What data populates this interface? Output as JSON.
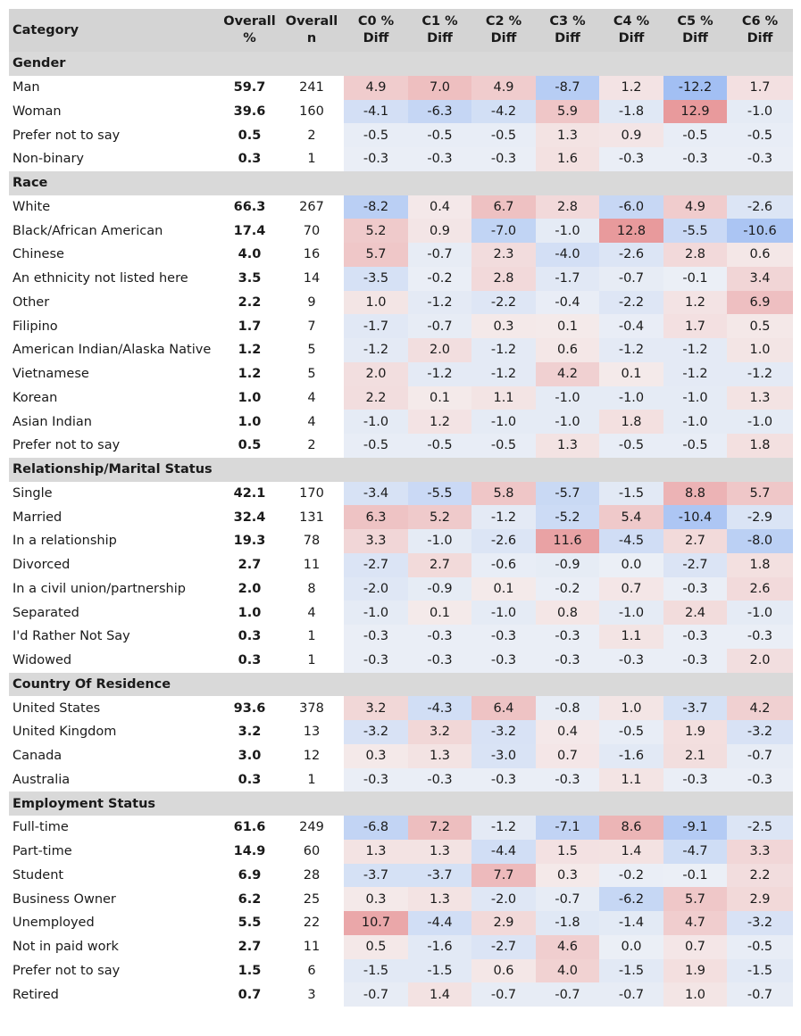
{
  "headers": [
    "Category",
    "Overall %",
    "Overall n",
    "C0 % Diff",
    "C1 % Diff",
    "C2 % Diff",
    "C3 % Diff",
    "C4 % Diff",
    "C5 % Diff",
    "C6 % Diff"
  ],
  "colors": {
    "header_bg": "#d4d4d4",
    "section_bg": "#d9d9d9",
    "positive_strong": "#e8999b",
    "negative_strong": "#9dbcf3",
    "neutral_tint": "#f6f6f6"
  },
  "sections": [
    {
      "title": "Gender",
      "rows": [
        {
          "label": "Man",
          "pct": "59.7",
          "n": "241",
          "diffs": [
            "4.9",
            "7.0",
            "4.9",
            "-8.7",
            "1.2",
            "-12.2",
            "1.7"
          ]
        },
        {
          "label": "Woman",
          "pct": "39.6",
          "n": "160",
          "diffs": [
            "-4.1",
            "-6.3",
            "-4.2",
            "5.9",
            "-1.8",
            "12.9",
            "-1.0"
          ]
        },
        {
          "label": "Prefer not to say",
          "pct": "0.5",
          "n": "2",
          "diffs": [
            "-0.5",
            "-0.5",
            "-0.5",
            "1.3",
            "0.9",
            "-0.5",
            "-0.5"
          ]
        },
        {
          "label": "Non-binary",
          "pct": "0.3",
          "n": "1",
          "diffs": [
            "-0.3",
            "-0.3",
            "-0.3",
            "1.6",
            "-0.3",
            "-0.3",
            "-0.3"
          ]
        }
      ]
    },
    {
      "title": "Race",
      "rows": [
        {
          "label": "White",
          "pct": "66.3",
          "n": "267",
          "diffs": [
            "-8.2",
            "0.4",
            "6.7",
            "2.8",
            "-6.0",
            "4.9",
            "-2.6"
          ]
        },
        {
          "label": "Black/African American",
          "pct": "17.4",
          "n": "70",
          "diffs": [
            "5.2",
            "0.9",
            "-7.0",
            "-1.0",
            "12.8",
            "-5.5",
            "-10.6"
          ]
        },
        {
          "label": "Chinese",
          "pct": "4.0",
          "n": "16",
          "diffs": [
            "5.7",
            "-0.7",
            "2.3",
            "-4.0",
            "-2.6",
            "2.8",
            "0.6"
          ]
        },
        {
          "label": "An ethnicity not listed here",
          "pct": "3.5",
          "n": "14",
          "diffs": [
            "-3.5",
            "-0.2",
            "2.8",
            "-1.7",
            "-0.7",
            "-0.1",
            "3.4"
          ]
        },
        {
          "label": "Other",
          "pct": "2.2",
          "n": "9",
          "diffs": [
            "1.0",
            "-1.2",
            "-2.2",
            "-0.4",
            "-2.2",
            "1.2",
            "6.9"
          ]
        },
        {
          "label": "Filipino",
          "pct": "1.7",
          "n": "7",
          "diffs": [
            "-1.7",
            "-0.7",
            "0.3",
            "0.1",
            "-0.4",
            "1.7",
            "0.5"
          ]
        },
        {
          "label": "American Indian/Alaska Native",
          "pct": "1.2",
          "n": "5",
          "diffs": [
            "-1.2",
            "2.0",
            "-1.2",
            "0.6",
            "-1.2",
            "-1.2",
            "1.0"
          ]
        },
        {
          "label": "Vietnamese",
          "pct": "1.2",
          "n": "5",
          "diffs": [
            "2.0",
            "-1.2",
            "-1.2",
            "4.2",
            "0.1",
            "-1.2",
            "-1.2"
          ]
        },
        {
          "label": "Korean",
          "pct": "1.0",
          "n": "4",
          "diffs": [
            "2.2",
            "0.1",
            "1.1",
            "-1.0",
            "-1.0",
            "-1.0",
            "1.3"
          ]
        },
        {
          "label": "Asian Indian",
          "pct": "1.0",
          "n": "4",
          "diffs": [
            "-1.0",
            "1.2",
            "-1.0",
            "-1.0",
            "1.8",
            "-1.0",
            "-1.0"
          ]
        },
        {
          "label": "Prefer not to say",
          "pct": "0.5",
          "n": "2",
          "diffs": [
            "-0.5",
            "-0.5",
            "-0.5",
            "1.3",
            "-0.5",
            "-0.5",
            "1.8"
          ]
        }
      ]
    },
    {
      "title": "Relationship/Marital Status",
      "rows": [
        {
          "label": "Single",
          "pct": "42.1",
          "n": "170",
          "diffs": [
            "-3.4",
            "-5.5",
            "5.8",
            "-5.7",
            "-1.5",
            "8.8",
            "5.7"
          ]
        },
        {
          "label": "Married",
          "pct": "32.4",
          "n": "131",
          "diffs": [
            "6.3",
            "5.2",
            "-1.2",
            "-5.2",
            "5.4",
            "-10.4",
            "-2.9"
          ]
        },
        {
          "label": "In a relationship",
          "pct": "19.3",
          "n": "78",
          "diffs": [
            "3.3",
            "-1.0",
            "-2.6",
            "11.6",
            "-4.5",
            "2.7",
            "-8.0"
          ]
        },
        {
          "label": "Divorced",
          "pct": "2.7",
          "n": "11",
          "diffs": [
            "-2.7",
            "2.7",
            "-0.6",
            "-0.9",
            "0.0",
            "-2.7",
            "1.8"
          ]
        },
        {
          "label": "In a civil union/partnership",
          "pct": "2.0",
          "n": "8",
          "diffs": [
            "-2.0",
            "-0.9",
            "0.1",
            "-0.2",
            "0.7",
            "-0.3",
            "2.6"
          ]
        },
        {
          "label": "Separated",
          "pct": "1.0",
          "n": "4",
          "diffs": [
            "-1.0",
            "0.1",
            "-1.0",
            "0.8",
            "-1.0",
            "2.4",
            "-1.0"
          ]
        },
        {
          "label": "I'd Rather Not Say",
          "pct": "0.3",
          "n": "1",
          "diffs": [
            "-0.3",
            "-0.3",
            "-0.3",
            "-0.3",
            "1.1",
            "-0.3",
            "-0.3"
          ]
        },
        {
          "label": "Widowed",
          "pct": "0.3",
          "n": "1",
          "diffs": [
            "-0.3",
            "-0.3",
            "-0.3",
            "-0.3",
            "-0.3",
            "-0.3",
            "2.0"
          ]
        }
      ]
    },
    {
      "title": "Country Of Residence",
      "rows": [
        {
          "label": "United States",
          "pct": "93.6",
          "n": "378",
          "diffs": [
            "3.2",
            "-4.3",
            "6.4",
            "-0.8",
            "1.0",
            "-3.7",
            "4.2"
          ]
        },
        {
          "label": "United Kingdom",
          "pct": "3.2",
          "n": "13",
          "diffs": [
            "-3.2",
            "3.2",
            "-3.2",
            "0.4",
            "-0.5",
            "1.9",
            "-3.2"
          ]
        },
        {
          "label": "Canada",
          "pct": "3.0",
          "n": "12",
          "diffs": [
            "0.3",
            "1.3",
            "-3.0",
            "0.7",
            "-1.6",
            "2.1",
            "-0.7"
          ]
        },
        {
          "label": "Australia",
          "pct": "0.3",
          "n": "1",
          "diffs": [
            "-0.3",
            "-0.3",
            "-0.3",
            "-0.3",
            "1.1",
            "-0.3",
            "-0.3"
          ]
        }
      ]
    },
    {
      "title": "Employment Status",
      "rows": [
        {
          "label": "Full-time",
          "pct": "61.6",
          "n": "249",
          "diffs": [
            "-6.8",
            "7.2",
            "-1.2",
            "-7.1",
            "8.6",
            "-9.1",
            "-2.5"
          ]
        },
        {
          "label": "Part-time",
          "pct": "14.9",
          "n": "60",
          "diffs": [
            "1.3",
            "1.3",
            "-4.4",
            "1.5",
            "1.4",
            "-4.7",
            "3.3"
          ]
        },
        {
          "label": "Student",
          "pct": "6.9",
          "n": "28",
          "diffs": [
            "-3.7",
            "-3.7",
            "7.7",
            "0.3",
            "-0.2",
            "-0.1",
            "2.2"
          ]
        },
        {
          "label": "Business Owner",
          "pct": "6.2",
          "n": "25",
          "diffs": [
            "0.3",
            "1.3",
            "-2.0",
            "-0.7",
            "-6.2",
            "5.7",
            "2.9"
          ]
        },
        {
          "label": "Unemployed",
          "pct": "5.5",
          "n": "22",
          "diffs": [
            "10.7",
            "-4.4",
            "2.9",
            "-1.8",
            "-1.4",
            "4.7",
            "-3.2"
          ]
        },
        {
          "label": "Not in paid work",
          "pct": "2.7",
          "n": "11",
          "diffs": [
            "0.5",
            "-1.6",
            "-2.7",
            "4.6",
            "0.0",
            "0.7",
            "-0.5"
          ]
        },
        {
          "label": "Prefer not to say",
          "pct": "1.5",
          "n": "6",
          "diffs": [
            "-1.5",
            "-1.5",
            "0.6",
            "4.0",
            "-1.5",
            "1.9",
            "-1.5"
          ]
        },
        {
          "label": "Retired",
          "pct": "0.7",
          "n": "3",
          "diffs": [
            "-0.7",
            "1.4",
            "-0.7",
            "-0.7",
            "-0.7",
            "1.0",
            "-0.7"
          ]
        }
      ]
    }
  ]
}
